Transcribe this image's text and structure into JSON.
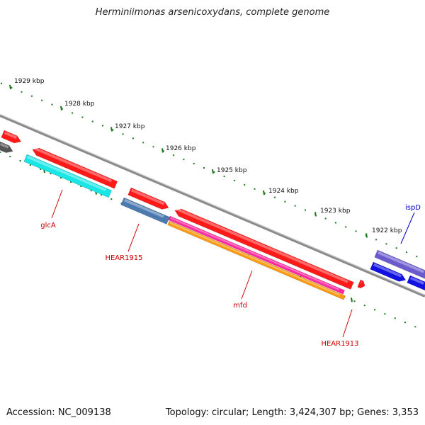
{
  "title": "Herminiimonas arsenicoxydans, complete genome",
  "footer": {
    "accession": "Accession: NC_009138",
    "summary": "Topology: circular; Length: 3,424,307 bp; Genes: 3,353"
  },
  "colors": {
    "backbone": "#8a8a8a",
    "tick": "#1a7a1a",
    "gene_label": "#cc0000",
    "highlight_label": "#0000cc"
  },
  "ticks": [
    {
      "label": "1929 kbp"
    },
    {
      "label": "1928 kbp"
    },
    {
      "label": "1927 kbp"
    },
    {
      "label": "1926 kbp"
    },
    {
      "label": "1925 kbp"
    },
    {
      "label": "1924 kbp"
    },
    {
      "label": "1923 kbp"
    },
    {
      "label": "1922 kbp"
    }
  ],
  "gene_labels": [
    {
      "name": "glcA",
      "color": "#cc0000"
    },
    {
      "name": "HEAR1915",
      "color": "#cc0000"
    },
    {
      "name": "mfd",
      "color": "#cc0000"
    },
    {
      "name": "HEAR1913",
      "color": "#cc0000"
    },
    {
      "name": "ispD",
      "color": "#0000cc"
    }
  ],
  "features": [
    {
      "name": "gene-red-a",
      "color": "#ff1a1a"
    },
    {
      "name": "gene-gray",
      "color": "#555555"
    },
    {
      "name": "gene-glcA-red",
      "color": "#ff1a1a"
    },
    {
      "name": "gene-glcA-cyan",
      "color": "#1ae6e6"
    },
    {
      "name": "gene-HEAR1915-red",
      "color": "#ff1a1a"
    },
    {
      "name": "gene-HEAR1915-steel",
      "color": "#4a7ab0"
    },
    {
      "name": "gene-mfd-red",
      "color": "#ff1a1a"
    },
    {
      "name": "gene-mfd-magenta",
      "color": "#ff2aa0"
    },
    {
      "name": "gene-mfd-orange",
      "color": "#ff9a10"
    },
    {
      "name": "gene-HEAR1913-red",
      "color": "#ff1a1a"
    },
    {
      "name": "gene-ispD-purple",
      "color": "#6a5acd"
    },
    {
      "name": "gene-ispD-blue",
      "color": "#1010e0"
    },
    {
      "name": "gene-ispD-blue2",
      "color": "#1010e0"
    }
  ]
}
